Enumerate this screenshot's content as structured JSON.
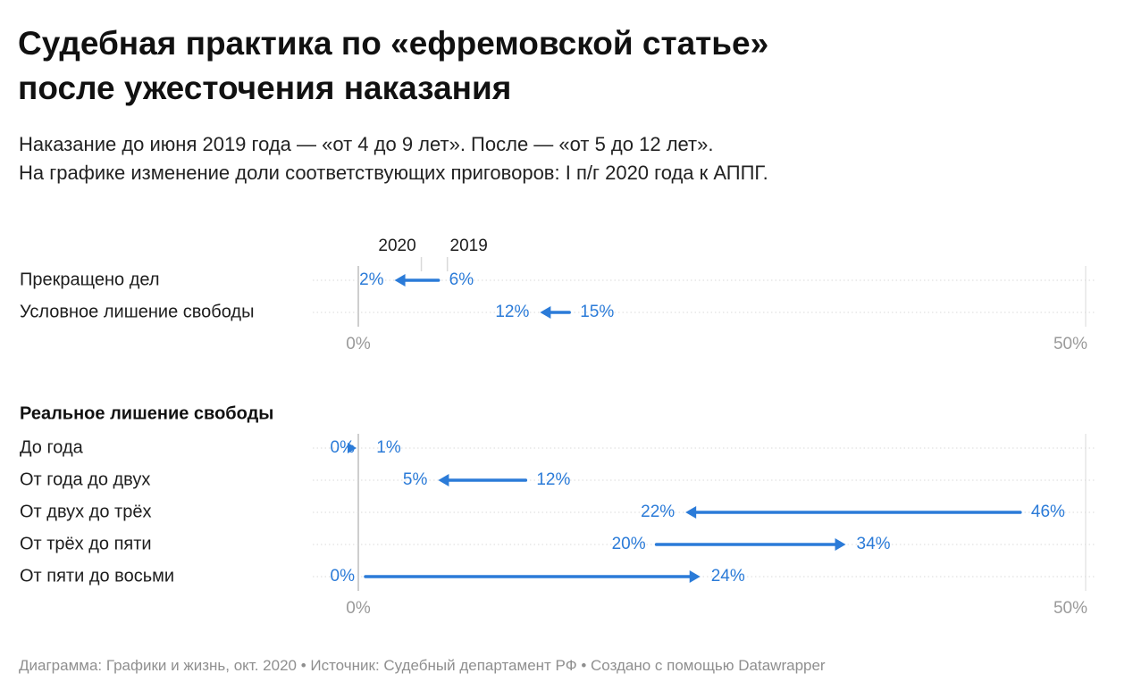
{
  "header": {
    "title_line1": "Судебная практика по «ефремовской статье»",
    "title_line2": "после ужесточения наказания",
    "subtitle_line1": "Наказание до июня 2019 года — «от 4 до 9 лет». После — «от 5 до 12 лет».",
    "subtitle_line2": "На графике изменение доли соответствующих приговоров: I п/г 2020 года к АППГ."
  },
  "footer": {
    "text": "Диаграмма: Графики и жизнь, окт. 2020 • Источник: Судебный департамент РФ • Создано с помощью Datawrapper"
  },
  "colors": {
    "accent": "#2b7bd8",
    "axis_label": "#9a9a9a",
    "grid": "#d9d9d9",
    "zero_line": "#bdbdbd"
  },
  "chart_data": [
    {
      "type": "arrow",
      "legend": {
        "start_label": "2019",
        "end_label": "2020"
      },
      "categories": [
        "Прекращено дел",
        "Условное лишение свободы"
      ],
      "series": [
        {
          "name": "2019",
          "values": [
            6,
            15
          ]
        },
        {
          "name": "2020",
          "values": [
            2,
            12
          ]
        }
      ],
      "xlim": [
        0,
        50
      ],
      "xticks": [
        "0%",
        "50%"
      ],
      "grid": true,
      "unit": "%"
    },
    {
      "type": "arrow",
      "title": "Реальное лишение свободы",
      "categories": [
        "До года",
        "От года до двух",
        "От двух до трёх",
        "От трёх до пяти",
        "От пяти до восьми"
      ],
      "series": [
        {
          "name": "2019",
          "values": [
            1,
            12,
            46,
            20,
            0
          ]
        },
        {
          "name": "2020",
          "values": [
            0,
            5,
            22,
            34,
            24
          ]
        }
      ],
      "xlim": [
        0,
        50
      ],
      "xticks": [
        "0%",
        "50%"
      ],
      "grid": true,
      "unit": "%"
    }
  ]
}
